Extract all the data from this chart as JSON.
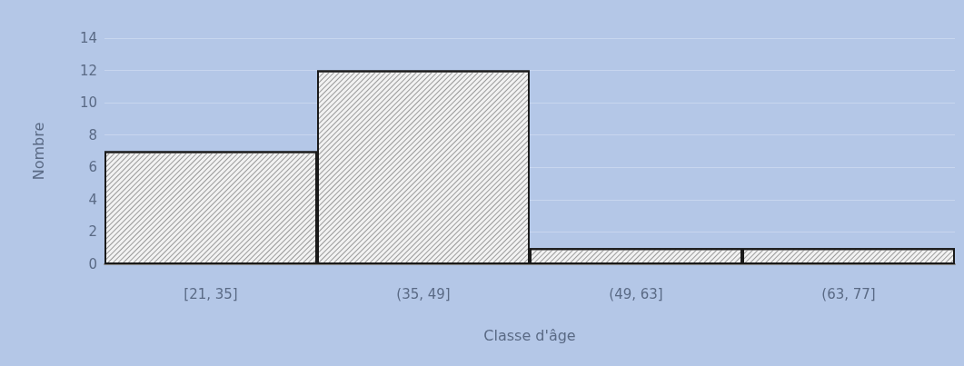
{
  "chart_data": {
    "type": "bar",
    "xlabel": "Classe d'âge",
    "ylabel": "Nombre",
    "categories": [
      "[21, 35]",
      "(35, 49]",
      "(49, 63]",
      "(63, 77]"
    ],
    "values": [
      7,
      12,
      1,
      1
    ],
    "color": "#f2f2f2",
    "ylim": [
      0,
      14
    ],
    "yticks": [
      0,
      2,
      4,
      6,
      8,
      10,
      12,
      14
    ],
    "grid": "y"
  }
}
